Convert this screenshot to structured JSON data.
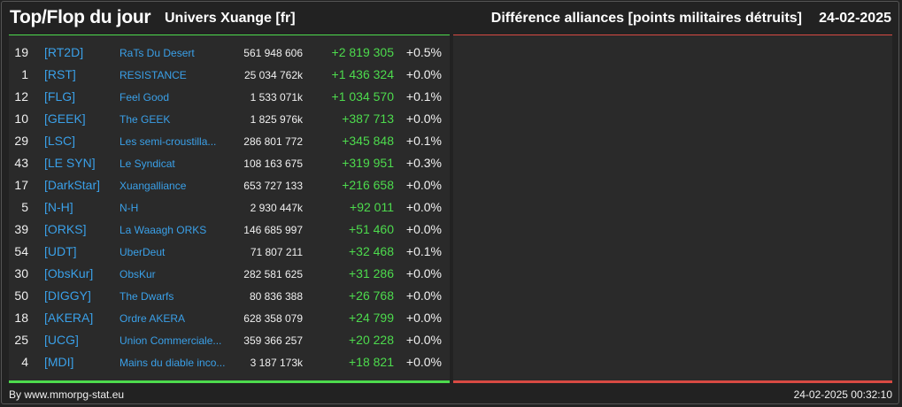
{
  "header": {
    "title": "Top/Flop du jour",
    "universe": "Univers Xuange [fr]",
    "right_title": "Différence alliances [points militaires détruits]",
    "date": "24-02-2025"
  },
  "colors": {
    "background": "#222222",
    "panel": "#2a2a2a",
    "top_accent": "#4ddb4d",
    "flop_accent": "#d84a43",
    "link": "#3aa0e8",
    "positive": "#4ddb4d"
  },
  "top_rows": [
    {
      "rank": "19",
      "tag": "[RT2D]",
      "name": "RaTs Du Desert",
      "points": "561 948 606",
      "diff": "+2 819 305",
      "pct": "+0.5%"
    },
    {
      "rank": "1",
      "tag": "[RST]",
      "name": "RESISTANCE",
      "points": "25 034 762k",
      "diff": "+1 436 324",
      "pct": "+0.0%"
    },
    {
      "rank": "12",
      "tag": "[FLG]",
      "name": "Feel Good",
      "points": "1 533 071k",
      "diff": "+1 034 570",
      "pct": "+0.1%"
    },
    {
      "rank": "10",
      "tag": "[GEEK]",
      "name": "The GEEK",
      "points": "1 825 976k",
      "diff": "+387 713",
      "pct": "+0.0%"
    },
    {
      "rank": "29",
      "tag": "[LSC]",
      "name": "Les semi-croustilla...",
      "points": "286 801 772",
      "diff": "+345 848",
      "pct": "+0.1%"
    },
    {
      "rank": "43",
      "tag": "[LE SYN]",
      "name": "Le Syndicat",
      "points": "108 163 675",
      "diff": "+319 951",
      "pct": "+0.3%"
    },
    {
      "rank": "17",
      "tag": "[DarkStar]",
      "name": "Xuangalliance",
      "points": "653 727 133",
      "diff": "+216 658",
      "pct": "+0.0%"
    },
    {
      "rank": "5",
      "tag": "[N-H]",
      "name": "N-H",
      "points": "2 930 447k",
      "diff": "+92 011",
      "pct": "+0.0%"
    },
    {
      "rank": "39",
      "tag": "[ORKS]",
      "name": "La Waaagh ORKS",
      "points": "146 685 997",
      "diff": "+51 460",
      "pct": "+0.0%"
    },
    {
      "rank": "54",
      "tag": "[UDT]",
      "name": "UberDeut",
      "points": "71 807 211",
      "diff": "+32 468",
      "pct": "+0.1%"
    },
    {
      "rank": "30",
      "tag": "[ObsKur]",
      "name": "ObsKur",
      "points": "282 581 625",
      "diff": "+31 286",
      "pct": "+0.0%"
    },
    {
      "rank": "50",
      "tag": "[DIGGY]",
      "name": "The Dwarfs",
      "points": "80 836 388",
      "diff": "+26 768",
      "pct": "+0.0%"
    },
    {
      "rank": "18",
      "tag": "[AKERA]",
      "name": "Ordre AKERA",
      "points": "628 358 079",
      "diff": "+24 799",
      "pct": "+0.0%"
    },
    {
      "rank": "25",
      "tag": "[UCG]",
      "name": "Union Commerciale...",
      "points": "359 366 257",
      "diff": "+20 228",
      "pct": "+0.0%"
    },
    {
      "rank": "4",
      "tag": "[MDI]",
      "name": "Mains du diable inco...",
      "points": "3 187 173k",
      "diff": "+18 821",
      "pct": "+0.0%"
    }
  ],
  "footer": {
    "credit": "By www.mmorpg-stat.eu",
    "timestamp": "24-02-2025 00:32:10"
  }
}
